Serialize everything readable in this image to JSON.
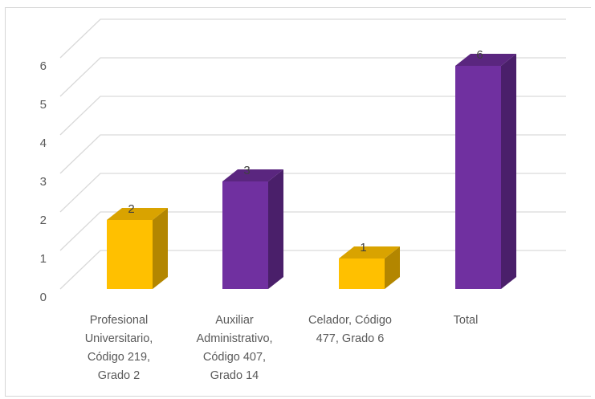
{
  "chart_data": {
    "type": "bar",
    "title": "",
    "xlabel": "",
    "ylabel": "",
    "ylim": [
      0,
      6
    ],
    "yticks": [
      "0",
      "1",
      "2",
      "3",
      "4",
      "5",
      "6"
    ],
    "grid": true,
    "three_d": true,
    "categories": [
      "Profesional Universitario, Código 219, Grado 2",
      "Auxiliar Administrativo, Código 407, Grado 14",
      "Celador, Código 477, Grado 6",
      "Total"
    ],
    "category_lines": [
      [
        "Profesional",
        "Universitario,",
        "Código 219,",
        "Grado 2"
      ],
      [
        "Auxiliar",
        "Administrativo,",
        "Código 407,",
        "Grado 14"
      ],
      [
        "Celador, Código",
        "477, Grado 6"
      ],
      [
        "Total"
      ]
    ],
    "values": [
      2,
      3,
      1,
      6
    ],
    "data_labels": [
      "2",
      "3",
      "1",
      "6"
    ],
    "bar_colors": [
      "#ffc000",
      "#7030a0",
      "#ffc000",
      "#7030a0"
    ],
    "colors": {
      "gold_front": "#ffc000",
      "gold_side": "#b38600",
      "gold_top": "#d9a300",
      "purple_front": "#7030a0",
      "purple_side": "#4a1f6a",
      "purple_top": "#5a267f",
      "grid": "#d9d9d9"
    }
  }
}
